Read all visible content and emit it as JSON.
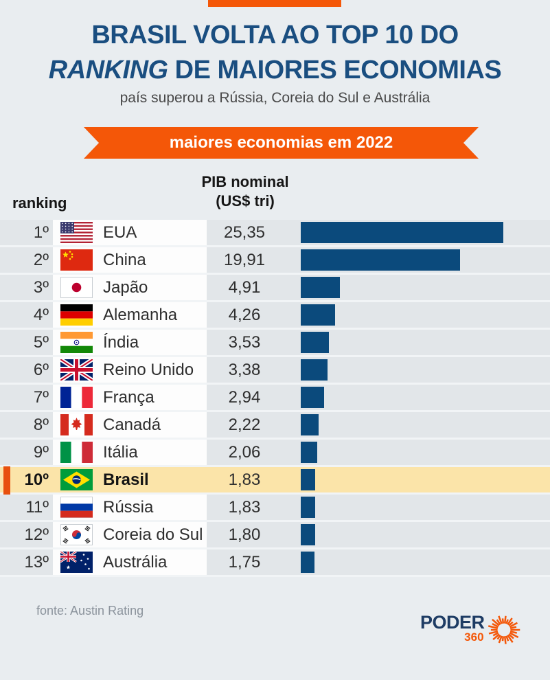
{
  "header": {
    "title_line1": "BRASIL VOLTA AO TOP 10 DO",
    "title_line2_italic": "RANKING",
    "title_line2_rest": " DE MAIORES ECONOMIAS",
    "subtitle": "país superou a Rússia, Coreia do Sul e Austrália",
    "ribbon": "maiores economias em 2022"
  },
  "table": {
    "col_ranking": "ranking",
    "col_pib_line1": "PIB nominal",
    "col_pib_line2": "(US$ tri)",
    "rows": [
      {
        "rank": "1º",
        "country": "EUA",
        "flag": "flag-eua-icon",
        "code": "us",
        "value": "25,35",
        "value_num": 25.35,
        "highlight": false
      },
      {
        "rank": "2º",
        "country": "China",
        "flag": "flag-china-icon",
        "code": "cn",
        "value": "19,91",
        "value_num": 19.91,
        "highlight": false
      },
      {
        "rank": "3º",
        "country": "Japão",
        "flag": "flag-japao-icon",
        "code": "jp",
        "value": "4,91",
        "value_num": 4.91,
        "highlight": false
      },
      {
        "rank": "4º",
        "country": "Alemanha",
        "flag": "flag-alemanha-icon",
        "code": "de",
        "value": "4,26",
        "value_num": 4.26,
        "highlight": false
      },
      {
        "rank": "5º",
        "country": "Índia",
        "flag": "flag-india-icon",
        "code": "in",
        "value": "3,53",
        "value_num": 3.53,
        "highlight": false
      },
      {
        "rank": "6º",
        "country": "Reino Unido",
        "flag": "flag-reino-unido-icon",
        "code": "gb",
        "value": "3,38",
        "value_num": 3.38,
        "highlight": false
      },
      {
        "rank": "7º",
        "country": "França",
        "flag": "flag-franca-icon",
        "code": "fr",
        "value": "2,94",
        "value_num": 2.94,
        "highlight": false
      },
      {
        "rank": "8º",
        "country": "Canadá",
        "flag": "flag-canada-icon",
        "code": "ca",
        "value": "2,22",
        "value_num": 2.22,
        "highlight": false
      },
      {
        "rank": "9º",
        "country": "Itália",
        "flag": "flag-italia-icon",
        "code": "it",
        "value": "2,06",
        "value_num": 2.06,
        "highlight": false
      },
      {
        "rank": "10º",
        "country": "Brasil",
        "flag": "flag-brasil-icon",
        "code": "br",
        "value": "1,83",
        "value_num": 1.83,
        "highlight": true
      },
      {
        "rank": "11º",
        "country": "Rússia",
        "flag": "flag-russia-icon",
        "code": "ru",
        "value": "1,83",
        "value_num": 1.83,
        "highlight": false
      },
      {
        "rank": "12º",
        "country": "Coreia do Sul",
        "flag": "flag-coreia-do-sul-icon",
        "code": "kr",
        "value": "1,80",
        "value_num": 1.8,
        "highlight": false
      },
      {
        "rank": "13º",
        "country": "Austrália",
        "flag": "flag-australia-icon",
        "code": "au",
        "value": "1,75",
        "value_num": 1.75,
        "highlight": false
      }
    ]
  },
  "footer": {
    "source": "fonte: Austin Rating",
    "logo_text": "PODER",
    "logo_sub": "360"
  },
  "colors": {
    "accent_orange": "#f45708",
    "bar_navy": "#0b4a7c",
    "title_navy": "#1a4e80",
    "highlight_yellow": "#fbe4a9",
    "marker_orange": "#e8500e",
    "row_gray": "#e2e6e9",
    "page_bg": "#e9edf0"
  },
  "chart_data": {
    "type": "bar",
    "orientation": "horizontal",
    "title": "maiores economias em 2022",
    "value_label": "PIB nominal (US$ tri)",
    "rank_label": "ranking",
    "categories": [
      "EUA",
      "China",
      "Japão",
      "Alemanha",
      "Índia",
      "Reino Unido",
      "França",
      "Canadá",
      "Itália",
      "Brasil",
      "Rússia",
      "Coreia do Sul",
      "Austrália"
    ],
    "ranks": [
      "1º",
      "2º",
      "3º",
      "4º",
      "5º",
      "6º",
      "7º",
      "8º",
      "9º",
      "10º",
      "11º",
      "12º",
      "13º"
    ],
    "values": [
      25.35,
      19.91,
      4.91,
      4.26,
      3.53,
      3.38,
      2.94,
      2.22,
      2.06,
      1.83,
      1.83,
      1.8,
      1.75
    ],
    "highlight_category": "Brasil",
    "xlim": [
      0,
      25.35
    ],
    "grid": false,
    "legend": false
  }
}
